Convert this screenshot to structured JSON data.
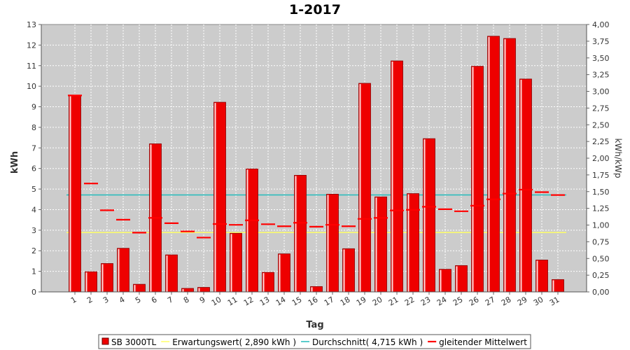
{
  "chart_data": {
    "type": "bar",
    "title": "1-2017",
    "xlabel": "Tag",
    "ylabel": "kWh",
    "ylabel_right": "kWh/kWp",
    "categories": [
      "1",
      "2",
      "3",
      "4",
      "5",
      "6",
      "7",
      "8",
      "9",
      "10",
      "11",
      "12",
      "13",
      "14",
      "15",
      "16",
      "17",
      "18",
      "19",
      "20",
      "21",
      "22",
      "23",
      "24",
      "25",
      "26",
      "27",
      "28",
      "29",
      "30",
      "31"
    ],
    "ylim": [
      0,
      13
    ],
    "ylim_right": [
      0,
      4.0
    ],
    "y_ticks": [
      "0",
      "1",
      "2",
      "3",
      "4",
      "5",
      "6",
      "7",
      "8",
      "9",
      "10",
      "11",
      "12",
      "13"
    ],
    "y_right_ticks": [
      "0,00",
      "0,25",
      "0,50",
      "0,75",
      "1,00",
      "1,25",
      "1,50",
      "1,75",
      "2,00",
      "2,25",
      "2,50",
      "2,75",
      "3,00",
      "3,25",
      "3,50",
      "3,75",
      "4,00"
    ],
    "grid": true,
    "legend_position": "bottom",
    "series": [
      {
        "name": "SB 3000TL",
        "kind": "bar",
        "color": "#ee0000",
        "values": [
          9.55,
          0.98,
          1.38,
          2.12,
          0.37,
          7.2,
          1.8,
          0.17,
          0.22,
          9.22,
          2.85,
          5.98,
          0.95,
          1.85,
          5.67,
          0.26,
          4.75,
          2.1,
          10.14,
          4.62,
          11.23,
          4.78,
          7.45,
          1.1,
          1.28,
          10.97,
          12.43,
          12.32,
          10.35,
          1.55,
          0.6
        ]
      },
      {
        "name": "Erwartungswert( 2,890 kWh )",
        "kind": "reference",
        "color": "#ffff66",
        "value": 2.89
      },
      {
        "name": "Durchschnitt( 4,715 kWh )",
        "kind": "reference",
        "color": "#22bbbb",
        "value": 4.715
      },
      {
        "name": "gleitender Mittelwert",
        "kind": "moving-average",
        "color": "#ff0000",
        "values": [
          9.55,
          5.27,
          3.97,
          3.51,
          2.88,
          3.6,
          3.34,
          2.94,
          2.64,
          3.3,
          3.26,
          3.48,
          3.29,
          3.19,
          3.36,
          3.17,
          3.26,
          3.19,
          3.55,
          3.6,
          3.96,
          3.99,
          4.14,
          4.02,
          3.92,
          4.19,
          4.5,
          4.78,
          4.97,
          4.85,
          4.71
        ]
      }
    ]
  }
}
